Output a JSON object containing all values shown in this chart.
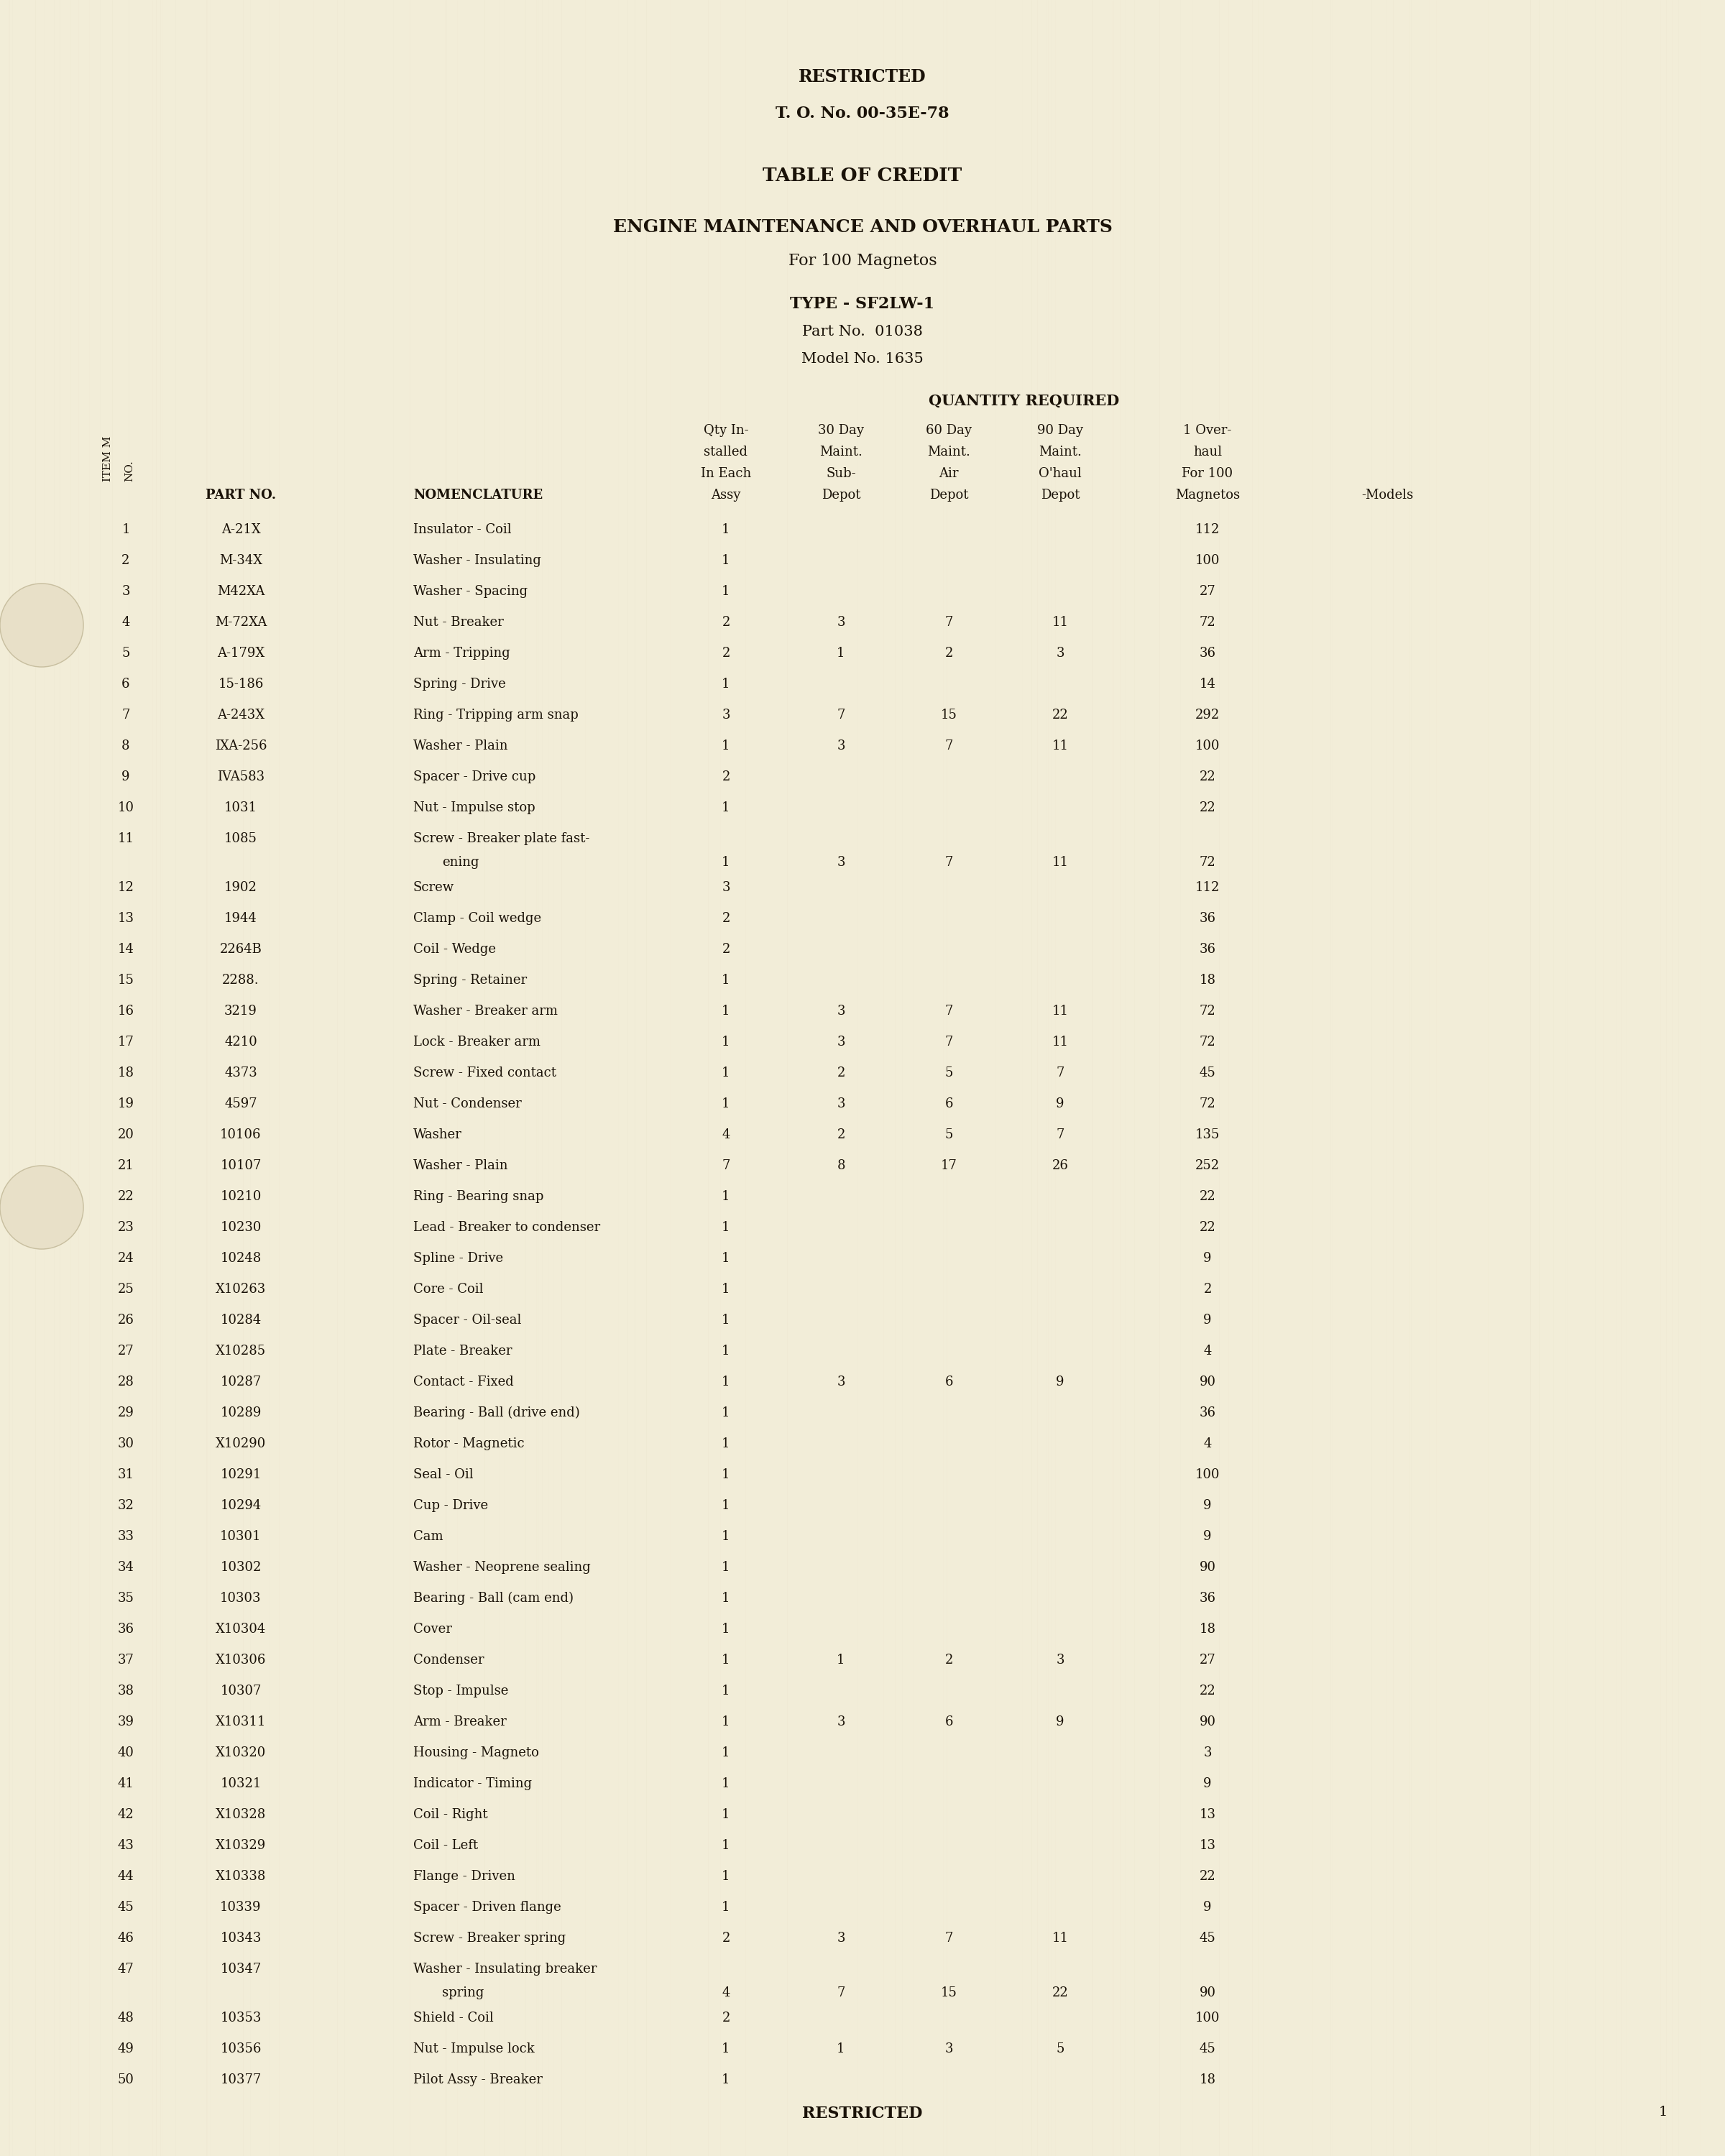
{
  "bg_color": "#f2edd8",
  "text_color": "#1a1208",
  "header_line1": "RESTRICTED",
  "header_line2": "T. O. No. 00-35E-78",
  "title1": "TABLE OF CREDIT",
  "title2": "ENGINE MAINTENANCE AND OVERHAUL PARTS",
  "title3": "For 100 Magnetos",
  "type_line": "TYPE - SF2LW-1",
  "part_line": "Part No.  01038",
  "model_line": "Model No. 1635",
  "qty_header": "QUANTITY REQUIRED",
  "footer": "RESTRICTED",
  "page_num": "1",
  "rows": [
    [
      1,
      "A-21X",
      "Insulator - Coil",
      1,
      "",
      "",
      "",
      112,
      ""
    ],
    [
      2,
      "M-34X",
      "Washer - Insulating",
      1,
      "",
      "",
      "",
      100,
      ""
    ],
    [
      3,
      "M42XA",
      "Washer - Spacing",
      1,
      "",
      "",
      "",
      27,
      ""
    ],
    [
      4,
      "M-72XA",
      "Nut - Breaker",
      2,
      3,
      7,
      11,
      72,
      ""
    ],
    [
      5,
      "A-179X",
      "Arm - Tripping",
      2,
      1,
      2,
      3,
      36,
      ""
    ],
    [
      6,
      "15-186",
      "Spring - Drive",
      1,
      "",
      "",
      "",
      14,
      ""
    ],
    [
      7,
      "A-243X",
      "Ring - Tripping arm snap",
      3,
      7,
      15,
      22,
      292,
      ""
    ],
    [
      8,
      "IXA-256",
      "Washer - Plain",
      1,
      3,
      7,
      11,
      100,
      ""
    ],
    [
      9,
      "IVA583",
      "Spacer - Drive cup",
      2,
      "",
      "",
      "",
      22,
      ""
    ],
    [
      10,
      "1031",
      "Nut - Impulse stop",
      1,
      "",
      "",
      "",
      22,
      ""
    ],
    [
      11,
      "1085",
      "Screw - Breaker plate fast-",
      1,
      3,
      7,
      11,
      72,
      "ening"
    ],
    [
      12,
      "1902",
      "Screw",
      3,
      "",
      "",
      "",
      112,
      ""
    ],
    [
      13,
      "1944",
      "Clamp - Coil wedge",
      2,
      "",
      "",
      "",
      36,
      ""
    ],
    [
      14,
      "2264B",
      "Coil - Wedge",
      2,
      "",
      "",
      "",
      36,
      ""
    ],
    [
      15,
      "2288.",
      "Spring - Retainer",
      1,
      "",
      "",
      "",
      18,
      ""
    ],
    [
      16,
      "3219",
      "Washer - Breaker arm",
      1,
      3,
      7,
      11,
      72,
      ""
    ],
    [
      17,
      "4210",
      "Lock - Breaker arm",
      1,
      3,
      7,
      11,
      72,
      ""
    ],
    [
      18,
      "4373",
      "Screw - Fixed contact",
      1,
      2,
      5,
      7,
      45,
      ""
    ],
    [
      19,
      "4597",
      "Nut - Condenser",
      1,
      3,
      6,
      9,
      72,
      ""
    ],
    [
      20,
      "10106",
      "Washer",
      4,
      2,
      5,
      7,
      135,
      ""
    ],
    [
      21,
      "10107",
      "Washer - Plain",
      7,
      8,
      17,
      26,
      252,
      ""
    ],
    [
      22,
      "10210",
      "Ring - Bearing snap",
      1,
      "",
      "",
      "",
      22,
      ""
    ],
    [
      23,
      "10230",
      "Lead - Breaker to condenser",
      1,
      "",
      "",
      "",
      22,
      ""
    ],
    [
      24,
      "10248",
      "Spline - Drive",
      1,
      "",
      "",
      "",
      9,
      ""
    ],
    [
      25,
      "X10263",
      "Core - Coil",
      1,
      "",
      "",
      "",
      2,
      ""
    ],
    [
      26,
      "10284",
      "Spacer - Oil-seal",
      1,
      "",
      "",
      "",
      9,
      ""
    ],
    [
      27,
      "X10285",
      "Plate - Breaker",
      1,
      "",
      "",
      "",
      4,
      ""
    ],
    [
      28,
      "10287",
      "Contact - Fixed",
      1,
      3,
      6,
      9,
      90,
      ""
    ],
    [
      29,
      "10289",
      "Bearing - Ball (drive end)",
      1,
      "",
      "",
      "",
      36,
      ""
    ],
    [
      30,
      "X10290",
      "Rotor - Magnetic",
      1,
      "",
      "",
      "",
      4,
      ""
    ],
    [
      31,
      "10291",
      "Seal - Oil",
      1,
      "",
      "",
      "",
      100,
      ""
    ],
    [
      32,
      "10294",
      "Cup - Drive",
      1,
      "",
      "",
      "",
      9,
      ""
    ],
    [
      33,
      "10301",
      "Cam",
      1,
      "",
      "",
      "",
      9,
      ""
    ],
    [
      34,
      "10302",
      "Washer - Neoprene sealing",
      1,
      "",
      "",
      "",
      90,
      ""
    ],
    [
      35,
      "10303",
      "Bearing - Ball (cam end)",
      1,
      "",
      "",
      "",
      36,
      ""
    ],
    [
      36,
      "X10304",
      "Cover",
      1,
      "",
      "",
      "",
      18,
      ""
    ],
    [
      37,
      "X10306",
      "Condenser",
      1,
      1,
      2,
      3,
      27,
      ""
    ],
    [
      38,
      "10307",
      "Stop - Impulse",
      1,
      "",
      "",
      "",
      22,
      ""
    ],
    [
      39,
      "X10311",
      "Arm - Breaker",
      1,
      3,
      6,
      9,
      90,
      ""
    ],
    [
      40,
      "X10320",
      "Housing - Magneto",
      1,
      "",
      "",
      "",
      3,
      ""
    ],
    [
      41,
      "10321",
      "Indicator - Timing",
      1,
      "",
      "",
      "",
      9,
      ""
    ],
    [
      42,
      "X10328",
      "Coil - Right",
      1,
      "",
      "",
      "",
      13,
      ""
    ],
    [
      43,
      "X10329",
      "Coil - Left",
      1,
      "",
      "",
      "",
      13,
      ""
    ],
    [
      44,
      "X10338",
      "Flange - Driven",
      1,
      "",
      "",
      "",
      22,
      ""
    ],
    [
      45,
      "10339",
      "Spacer - Driven flange",
      1,
      "",
      "",
      "",
      9,
      ""
    ],
    [
      46,
      "10343",
      "Screw - Breaker spring",
      2,
      3,
      7,
      11,
      45,
      ""
    ],
    [
      47,
      "10347",
      "Washer - Insulating breaker",
      4,
      7,
      15,
      22,
      90,
      "spring"
    ],
    [
      48,
      "10353",
      "Shield - Coil",
      2,
      "",
      "",
      "",
      100,
      ""
    ],
    [
      49,
      "10356",
      "Nut - Impulse lock",
      1,
      1,
      3,
      5,
      45,
      ""
    ],
    [
      50,
      "10377",
      "Pilot Assy - Breaker",
      1,
      "",
      "",
      "",
      18,
      ""
    ]
  ]
}
